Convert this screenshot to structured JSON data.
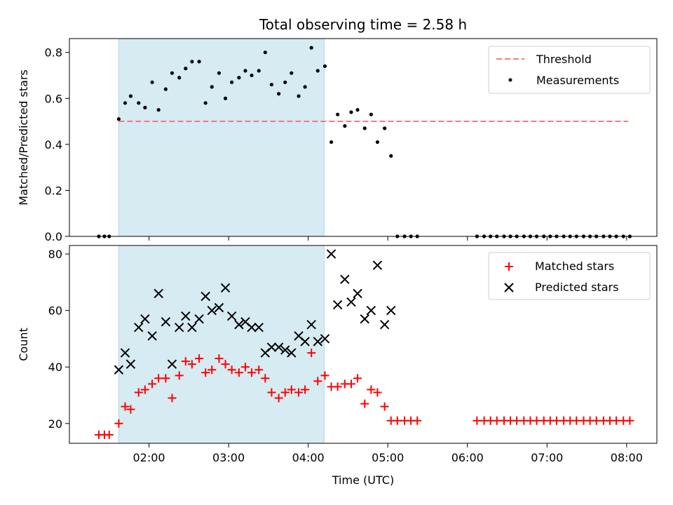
{
  "chart_data": {
    "type": "scatter",
    "title": "Total observing time = 2.58 h",
    "xlabel": "Time (UTC)",
    "x_ticks": [
      "02:00",
      "03:00",
      "04:00",
      "05:00",
      "06:00",
      "07:00",
      "08:00"
    ],
    "x_tick_hours": [
      2,
      3,
      4,
      5,
      6,
      7,
      8
    ],
    "xlim": [
      1.0,
      8.38
    ],
    "shaded_interval": [
      1.62,
      4.2
    ],
    "shade_color": "#add8e6",
    "panels": [
      {
        "id": "ratio",
        "ylabel": "Matched/Predicted stars",
        "ylim": [
          0.0,
          0.86
        ],
        "y_ticks": [
          0.0,
          0.2,
          0.4,
          0.6,
          0.8
        ],
        "y_tick_labels": [
          "0.0",
          "0.2",
          "0.4",
          "0.6",
          "0.8"
        ],
        "legend_position": "top-right",
        "threshold": {
          "name": "Threshold",
          "value": 0.5,
          "x_range": [
            1.62,
            8.02
          ],
          "color": "#ff7777"
        },
        "series": [
          {
            "name": "Measurements",
            "marker": "dot",
            "color": "#000000",
            "x": [
              1.37,
              1.44,
              1.5,
              1.62,
              1.7,
              1.77,
              1.87,
              1.95,
              2.04,
              2.12,
              2.21,
              2.29,
              2.38,
              2.46,
              2.54,
              2.63,
              2.71,
              2.79,
              2.88,
              2.96,
              3.04,
              3.13,
              3.21,
              3.29,
              3.38,
              3.46,
              3.54,
              3.63,
              3.71,
              3.79,
              3.88,
              3.96,
              4.04,
              4.12,
              4.21,
              4.29,
              4.37,
              4.46,
              4.54,
              4.62,
              4.71,
              4.79,
              4.87,
              4.96,
              5.04,
              5.12,
              5.21,
              5.29,
              5.37,
              6.12,
              6.21,
              6.29,
              6.37,
              6.46,
              6.54,
              6.62,
              6.71,
              6.79,
              6.87,
              6.96,
              7.04,
              7.12,
              7.21,
              7.29,
              7.37,
              7.46,
              7.54,
              7.62,
              7.71,
              7.79,
              7.87,
              7.96,
              8.04
            ],
            "y": [
              0.0,
              0.0,
              0.0,
              0.51,
              0.58,
              0.61,
              0.58,
              0.56,
              0.67,
              0.55,
              0.64,
              0.71,
              0.69,
              0.73,
              0.76,
              0.76,
              0.58,
              0.65,
              0.71,
              0.6,
              0.67,
              0.69,
              0.72,
              0.7,
              0.72,
              0.8,
              0.66,
              0.62,
              0.67,
              0.71,
              0.61,
              0.65,
              0.82,
              0.72,
              0.74,
              0.41,
              0.53,
              0.48,
              0.54,
              0.55,
              0.47,
              0.53,
              0.41,
              0.47,
              0.35,
              0.0,
              0.0,
              0.0,
              0.0,
              0.0,
              0.0,
              0.0,
              0.0,
              0.0,
              0.0,
              0.0,
              0.0,
              0.0,
              0.0,
              0.0,
              0.0,
              0.0,
              0.0,
              0.0,
              0.0,
              0.0,
              0.0,
              0.0,
              0.0,
              0.0,
              0.0,
              0.0,
              0.0
            ]
          }
        ]
      },
      {
        "id": "counts",
        "ylabel": "Count",
        "ylim": [
          13.0,
          83.0
        ],
        "y_ticks": [
          20,
          40,
          60,
          80
        ],
        "y_tick_labels": [
          "20",
          "40",
          "60",
          "80"
        ],
        "legend_position": "top-right",
        "series": [
          {
            "name": "Matched stars",
            "marker": "plus",
            "color": "#ff0000",
            "x": [
              1.37,
              1.44,
              1.5,
              1.62,
              1.7,
              1.77,
              1.87,
              1.95,
              2.04,
              2.12,
              2.21,
              2.29,
              2.38,
              2.46,
              2.54,
              2.63,
              2.71,
              2.79,
              2.88,
              2.96,
              3.04,
              3.13,
              3.21,
              3.29,
              3.38,
              3.46,
              3.54,
              3.63,
              3.71,
              3.79,
              3.88,
              3.96,
              4.04,
              4.12,
              4.21,
              4.29,
              4.37,
              4.46,
              4.54,
              4.62,
              4.71,
              4.79,
              4.87,
              4.96,
              5.04,
              5.12,
              5.21,
              5.29,
              5.37,
              6.12,
              6.21,
              6.29,
              6.37,
              6.46,
              6.54,
              6.62,
              6.71,
              6.79,
              6.87,
              6.96,
              7.04,
              7.12,
              7.21,
              7.29,
              7.37,
              7.46,
              7.54,
              7.62,
              7.71,
              7.79,
              7.87,
              7.96,
              8.04
            ],
            "y": [
              16,
              16,
              16,
              20,
              26,
              25,
              31,
              32,
              34,
              36,
              36,
              29,
              37,
              42,
              41,
              43,
              38,
              39,
              43,
              41,
              39,
              38,
              40,
              38,
              39,
              36,
              31,
              29,
              31,
              32,
              31,
              32,
              45,
              35,
              37,
              33,
              33,
              34,
              34,
              36,
              27,
              32,
              31,
              26,
              21,
              21,
              21,
              21,
              21,
              21,
              21,
              21,
              21,
              21,
              21,
              21,
              21,
              21,
              21,
              21,
              21,
              21,
              21,
              21,
              21,
              21,
              21,
              21,
              21,
              21,
              21,
              21,
              21
            ]
          },
          {
            "name": "Predicted stars",
            "marker": "cross",
            "color": "#000000",
            "x": [
              1.62,
              1.7,
              1.77,
              1.87,
              1.95,
              2.04,
              2.12,
              2.21,
              2.29,
              2.38,
              2.46,
              2.54,
              2.63,
              2.71,
              2.79,
              2.88,
              2.96,
              3.04,
              3.13,
              3.21,
              3.29,
              3.38,
              3.46,
              3.54,
              3.63,
              3.71,
              3.79,
              3.88,
              3.96,
              4.04,
              4.12,
              4.21,
              4.29,
              4.37,
              4.46,
              4.54,
              4.62,
              4.71,
              4.79,
              4.87,
              4.96,
              5.04
            ],
            "y": [
              39,
              45,
              41,
              54,
              57,
              51,
              66,
              56,
              41,
              54,
              58,
              54,
              57,
              65,
              60,
              61,
              68,
              58,
              55,
              56,
              54,
              54,
              45,
              47,
              47,
              46,
              45,
              51,
              49,
              55,
              49,
              50,
              80,
              62,
              71,
              63,
              66,
              57,
              60,
              76,
              55,
              60
            ]
          }
        ]
      }
    ]
  }
}
